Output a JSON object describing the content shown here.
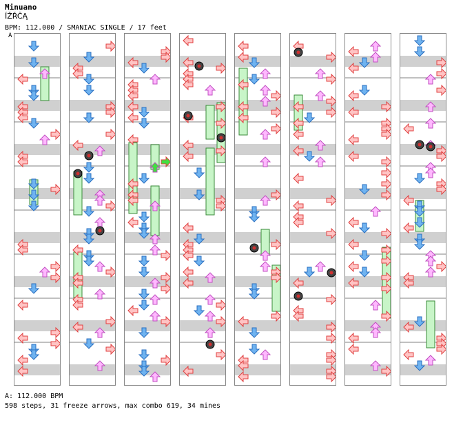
{
  "header": {
    "song_title": "Minuano",
    "subtitle": "ÍŽŘČĄ",
    "meta": "BPM: 112.000 / SMANIAC SINGLE / 17 feet",
    "bpm_line": "A: 112.000 BPM",
    "stats": "598 steps, 31 freeze arrows, max combo 619, 34 mines",
    "column_marker": "A"
  },
  "colors": {
    "left_fill": "#ffc4c4",
    "left_stroke": "#e04040",
    "down_fill": "#6fb3f0",
    "down_stroke": "#2a6fc0",
    "up_fill": "#ffb8ff",
    "up_stroke": "#c050c0",
    "right_fill": "#ffc4c4",
    "right_stroke": "#e04040",
    "freeze_fill": "#c8f5c8",
    "freeze_stroke": "#3a8a3a",
    "jump_green": "#40e040",
    "jump_yellow": "#f0f040",
    "stripe": "#d0d0d0",
    "bar_line": "#808080"
  }
}
